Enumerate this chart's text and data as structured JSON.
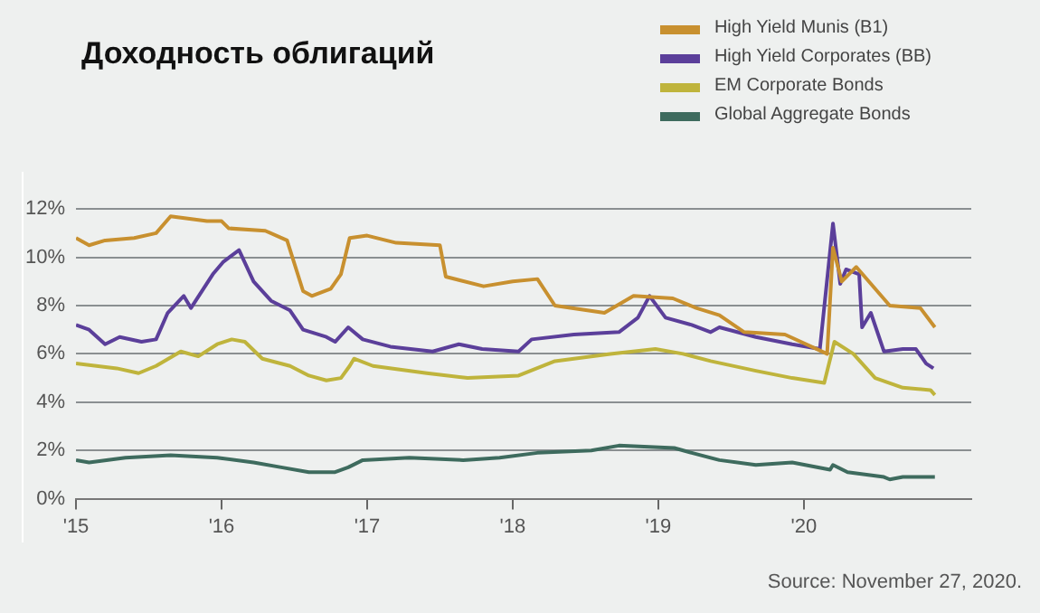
{
  "chart_data": {
    "type": "line",
    "title": "Доходность облигаций",
    "xlim": [
      2015,
      2021.15
    ],
    "xticks": [
      {
        "value": 2015,
        "label": "'15"
      },
      {
        "value": 2016,
        "label": "'16"
      },
      {
        "value": 2017,
        "label": "'17"
      },
      {
        "value": 2018,
        "label": "'18"
      },
      {
        "value": 2019,
        "label": "'19"
      },
      {
        "value": 2020,
        "label": "'20"
      }
    ],
    "ylim": [
      0,
      12
    ],
    "yticks": [
      {
        "value": 0,
        "label": "0%"
      },
      {
        "value": 2,
        "label": "2%"
      },
      {
        "value": 4,
        "label": "4%"
      },
      {
        "value": 6,
        "label": "6%"
      },
      {
        "value": 8,
        "label": "8%"
      },
      {
        "value": 10,
        "label": "10%"
      },
      {
        "value": 12,
        "label": "12%"
      }
    ],
    "grid": "y",
    "legend": "top right",
    "marker": "none",
    "annotations": [
      "Source: November 27, 2020."
    ],
    "series": [
      {
        "name": "High Yield Munis (B1)",
        "color": "#c8902f",
        "x": [
          2015.0,
          2015.09,
          2015.2,
          2015.4,
          2015.55,
          2015.65,
          2015.9,
          2016.0,
          2016.05,
          2016.3,
          2016.45,
          2016.56,
          2016.62,
          2016.75,
          2016.82,
          2016.88,
          2017.0,
          2017.2,
          2017.5,
          2017.54,
          2017.8,
          2018.0,
          2018.17,
          2018.29,
          2018.63,
          2018.83,
          2019.1,
          2019.26,
          2019.42,
          2019.59,
          2019.87,
          2020.16,
          2020.2,
          2020.26,
          2020.36,
          2020.59,
          2020.8,
          2020.9
        ],
        "values": [
          10.8,
          10.5,
          10.7,
          10.8,
          11.0,
          11.7,
          11.5,
          11.5,
          11.2,
          11.1,
          10.7,
          8.6,
          8.4,
          8.7,
          9.3,
          10.8,
          10.9,
          10.6,
          10.5,
          9.2,
          8.8,
          9.0,
          9.1,
          8.0,
          7.7,
          8.4,
          8.3,
          7.9,
          7.6,
          6.9,
          6.8,
          6.0,
          10.4,
          9.0,
          9.6,
          8.0,
          7.9,
          7.1
        ]
      },
      {
        "name": "High Yield Corporates (BB)",
        "color": "#5b3f9a",
        "x": [
          2015.0,
          2015.09,
          2015.2,
          2015.3,
          2015.45,
          2015.55,
          2015.63,
          2015.74,
          2015.79,
          2015.94,
          2016.01,
          2016.12,
          2016.22,
          2016.34,
          2016.47,
          2016.56,
          2016.72,
          2016.78,
          2016.87,
          2016.97,
          2017.16,
          2017.45,
          2017.63,
          2017.79,
          2018.04,
          2018.13,
          2018.42,
          2018.73,
          2018.86,
          2018.94,
          2019.05,
          2019.23,
          2019.36,
          2019.42,
          2019.67,
          2019.92,
          2020.11,
          2020.2,
          2020.25,
          2020.29,
          2020.38,
          2020.4,
          2020.46,
          2020.55,
          2020.68,
          2020.77,
          2020.84,
          2020.89
        ],
        "values": [
          7.2,
          7.0,
          6.4,
          6.7,
          6.5,
          6.6,
          7.7,
          8.4,
          7.9,
          9.3,
          9.8,
          10.3,
          9.0,
          8.2,
          7.8,
          7.0,
          6.7,
          6.5,
          7.1,
          6.6,
          6.3,
          6.1,
          6.4,
          6.2,
          6.1,
          6.6,
          6.8,
          6.9,
          7.5,
          8.4,
          7.5,
          7.2,
          6.9,
          7.1,
          6.7,
          6.4,
          6.2,
          11.4,
          8.9,
          9.5,
          9.3,
          7.1,
          7.7,
          6.1,
          6.2,
          6.2,
          5.6,
          5.4
        ]
      },
      {
        "name": "EM Corporate Bonds",
        "color": "#bfb43c",
        "x": [
          2015.0,
          2015.28,
          2015.43,
          2015.55,
          2015.72,
          2015.84,
          2015.97,
          2016.07,
          2016.16,
          2016.28,
          2016.47,
          2016.6,
          2016.72,
          2016.82,
          2016.88,
          2016.91,
          2017.04,
          2017.41,
          2017.69,
          2018.04,
          2018.29,
          2018.67,
          2018.98,
          2019.17,
          2019.36,
          2019.67,
          2019.92,
          2020.14,
          2020.21,
          2020.34,
          2020.49,
          2020.68,
          2020.87,
          2020.9
        ],
        "values": [
          5.6,
          5.4,
          5.2,
          5.5,
          6.1,
          5.9,
          6.4,
          6.6,
          6.5,
          5.8,
          5.5,
          5.1,
          4.9,
          5.0,
          5.5,
          5.8,
          5.5,
          5.2,
          5.0,
          5.1,
          5.7,
          6.0,
          6.2,
          6.0,
          5.7,
          5.3,
          5.0,
          4.8,
          6.5,
          6.0,
          5.0,
          4.6,
          4.5,
          4.3
        ]
      },
      {
        "name": "Global Aggregate Bonds",
        "color": "#3e6b5e",
        "x": [
          2015.0,
          2015.09,
          2015.34,
          2015.65,
          2015.97,
          2016.22,
          2016.41,
          2016.6,
          2016.78,
          2016.87,
          2016.97,
          2017.29,
          2017.66,
          2017.91,
          2018.17,
          2018.54,
          2018.73,
          2019.11,
          2019.23,
          2019.42,
          2019.67,
          2019.92,
          2020.18,
          2020.2,
          2020.3,
          2020.55,
          2020.59,
          2020.68,
          2020.9
        ],
        "values": [
          1.6,
          1.5,
          1.7,
          1.8,
          1.7,
          1.5,
          1.3,
          1.1,
          1.1,
          1.3,
          1.6,
          1.7,
          1.6,
          1.7,
          1.9,
          2.0,
          2.2,
          2.1,
          1.9,
          1.6,
          1.4,
          1.5,
          1.2,
          1.4,
          1.1,
          0.9,
          0.8,
          0.9,
          0.9
        ]
      }
    ]
  }
}
